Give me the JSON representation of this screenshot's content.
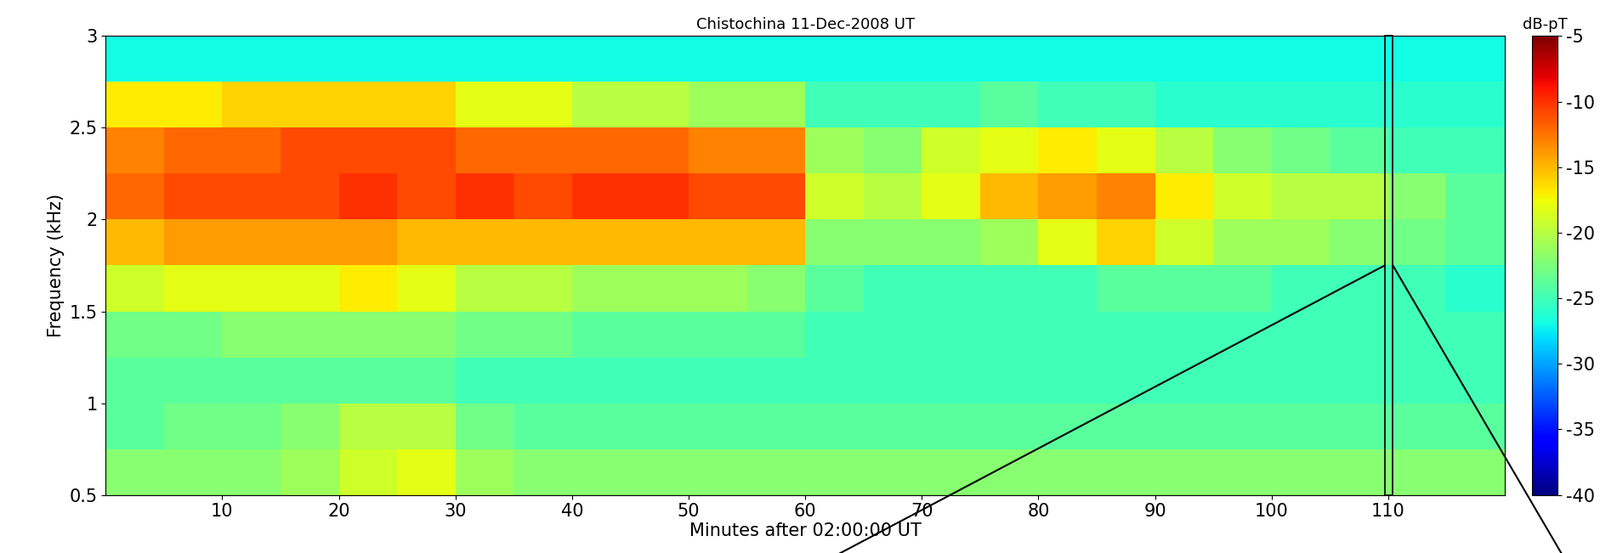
{
  "chart_data": {
    "type": "heatmap",
    "title": "Chistochina 11-Dec-2008 UT",
    "x_label": "Minutes after 02:00:00 UT",
    "y_label": "Frequency (kHz)",
    "x_edges": [
      0,
      5,
      10,
      15,
      20,
      25,
      30,
      35,
      40,
      45,
      50,
      55,
      60,
      65,
      70,
      75,
      80,
      85,
      90,
      95,
      100,
      105,
      110,
      115,
      120
    ],
    "y_edges": [
      0.5,
      0.75,
      1.0,
      1.25,
      1.5,
      1.75,
      2.0,
      2.25,
      2.5,
      2.75,
      3.0
    ],
    "xlim": [
      0,
      120
    ],
    "ylim": [
      0.5,
      3
    ],
    "xticks": [
      10,
      20,
      30,
      40,
      50,
      60,
      70,
      80,
      90,
      100,
      110
    ],
    "yticks": [
      0.5,
      1,
      1.5,
      2,
      2.5,
      3
    ],
    "cells": [
      [
        -22,
        -22,
        -22,
        -21,
        -19,
        -18,
        -21,
        -22,
        -22,
        -22,
        -22,
        -22,
        -22,
        -22,
        -22,
        -22,
        -22,
        -22,
        -22,
        -22,
        -22,
        -22,
        -22,
        -22
      ],
      [
        -24,
        -23,
        -23,
        -22,
        -20,
        -20,
        -23,
        -24,
        -24,
        -24,
        -24,
        -24,
        -24,
        -24,
        -24,
        -24,
        -24,
        -24,
        -24,
        -24,
        -24,
        -24,
        -24,
        -24
      ],
      [
        -24,
        -24,
        -24,
        -24,
        -24,
        -24,
        -25,
        -25,
        -25,
        -25,
        -25,
        -25,
        -25,
        -25,
        -25,
        -25,
        -25,
        -25,
        -25,
        -25,
        -25,
        -25,
        -25,
        -25
      ],
      [
        -23,
        -23,
        -22,
        -22,
        -22,
        -22,
        -23,
        -23,
        -24,
        -24,
        -24,
        -24,
        -25,
        -25,
        -25,
        -25,
        -25,
        -25,
        -25,
        -25,
        -25,
        -25,
        -25,
        -25
      ],
      [
        -19,
        -18,
        -18,
        -18,
        -17,
        -18,
        -20,
        -20,
        -21,
        -21,
        -21,
        -22,
        -24,
        -25,
        -25,
        -25,
        -25,
        -24,
        -24,
        -24,
        -25,
        -25,
        -25,
        -26
      ],
      [
        -15,
        -14,
        -14,
        -14,
        -14,
        -15,
        -15,
        -15,
        -15,
        -15,
        -15,
        -15,
        -22,
        -22,
        -22,
        -21,
        -18,
        -16,
        -19,
        -21,
        -21,
        -22,
        -23,
        -24
      ],
      [
        -12,
        -11,
        -11,
        -11,
        -10,
        -11,
        -10,
        -11,
        -10,
        -10,
        -11,
        -11,
        -19,
        -20,
        -18,
        -15,
        -14,
        -13,
        -17,
        -19,
        -20,
        -20,
        -22,
        -24
      ],
      [
        -13,
        -12,
        -12,
        -11,
        -11,
        -11,
        -12,
        -12,
        -12,
        -12,
        -13,
        -13,
        -21,
        -22,
        -19,
        -18,
        -17,
        -18,
        -20,
        -22,
        -23,
        -24,
        -25,
        -25
      ],
      [
        -17,
        -17,
        -16,
        -16,
        -16,
        -16,
        -18,
        -18,
        -20,
        -20,
        -21,
        -21,
        -25,
        -25,
        -25,
        -24,
        -25,
        -25,
        -26,
        -26,
        -26,
        -26,
        -26,
        -26
      ],
      [
        -27,
        -27,
        -27,
        -27,
        -27,
        -27,
        -27,
        -27,
        -27,
        -27,
        -27,
        -27,
        -27,
        -27,
        -27,
        -27,
        -27,
        -27,
        -27,
        -27,
        -27,
        -27,
        -27,
        -27
      ]
    ],
    "colorbar_label": "dB-pT",
    "colorbar_range": [
      -40,
      -5
    ],
    "colorbar_ticks": [
      -5,
      -10,
      -15,
      -20,
      -25,
      -30,
      -35,
      -40
    ],
    "highlight": {
      "xmin": 109.7,
      "xmax": 110.4
    }
  }
}
